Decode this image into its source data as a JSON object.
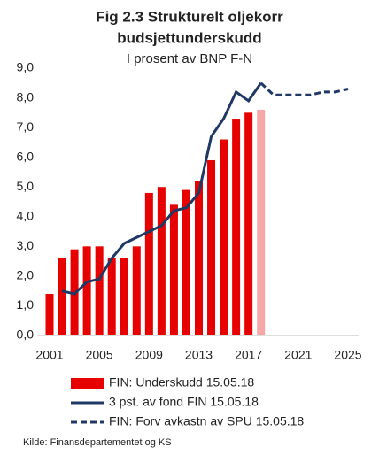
{
  "chart_data": {
    "type": "bar",
    "title": [
      "Fig 2.3 Strukturelt oljekorr",
      "budsjettunderskudd"
    ],
    "subtitle": "I prosent av BNP F-N",
    "source": "Kilde: Finansdepartementet  og KS",
    "x": [
      2001,
      2002,
      2003,
      2004,
      2005,
      2006,
      2007,
      2008,
      2009,
      2010,
      2011,
      2012,
      2013,
      2014,
      2015,
      2016,
      2017,
      2018,
      2019,
      2020,
      2021,
      2022,
      2023,
      2024,
      2025
    ],
    "xlim": [
      2001,
      2025
    ],
    "xticks": [
      2001,
      2005,
      2009,
      2013,
      2017,
      2021,
      2025
    ],
    "ylim": [
      0,
      9
    ],
    "yticks": [
      {
        "value": 0,
        "label": "0,0"
      },
      {
        "value": 1,
        "label": "1,0"
      },
      {
        "value": 2,
        "label": "2,0"
      },
      {
        "value": 3,
        "label": "3,0"
      },
      {
        "value": 4,
        "label": "4,0"
      },
      {
        "value": 5,
        "label": "5,0"
      },
      {
        "value": 6,
        "label": "6,0"
      },
      {
        "value": 7,
        "label": "7,0"
      },
      {
        "value": 8,
        "label": "8,0"
      },
      {
        "value": 9,
        "label": "9,0"
      }
    ],
    "grid": false,
    "series": [
      {
        "name": "FIN: Underskudd 15.05.18",
        "type": "bar",
        "color": "#e60000",
        "colors": [
          "#e60000",
          "#e60000",
          "#e60000",
          "#e60000",
          "#e60000",
          "#e60000",
          "#e60000",
          "#e60000",
          "#e60000",
          "#e60000",
          "#e60000",
          "#e60000",
          "#e60000",
          "#e60000",
          "#e60000",
          "#e60000",
          "#e60000",
          "#f6a7a7",
          null,
          null,
          null,
          null,
          null,
          null,
          null
        ],
        "values": [
          1.4,
          2.6,
          2.9,
          3.0,
          3.0,
          2.6,
          2.6,
          3.0,
          4.8,
          5.0,
          4.4,
          4.9,
          5.2,
          5.9,
          6.6,
          7.3,
          7.5,
          7.6,
          null,
          null,
          null,
          null,
          null,
          null,
          null
        ]
      },
      {
        "name": "3 pst. av fond FIN 15.05.18",
        "type": "line",
        "color": "#1f3864",
        "dash": false,
        "values": [
          null,
          1.5,
          1.4,
          1.8,
          1.9,
          2.6,
          3.1,
          3.3,
          3.5,
          3.7,
          4.2,
          4.3,
          4.8,
          6.7,
          7.3,
          8.2,
          7.9,
          8.5,
          null,
          null,
          null,
          null,
          null,
          null,
          null
        ]
      },
      {
        "name": "FIN: Forv avkastn av SPU 15.05.18",
        "type": "line",
        "color": "#1f3864",
        "dash": true,
        "values": [
          null,
          null,
          null,
          null,
          null,
          null,
          null,
          null,
          null,
          null,
          null,
          null,
          null,
          null,
          null,
          null,
          null,
          8.5,
          8.1,
          8.1,
          8.1,
          8.1,
          8.2,
          8.2,
          8.3
        ]
      }
    ]
  }
}
